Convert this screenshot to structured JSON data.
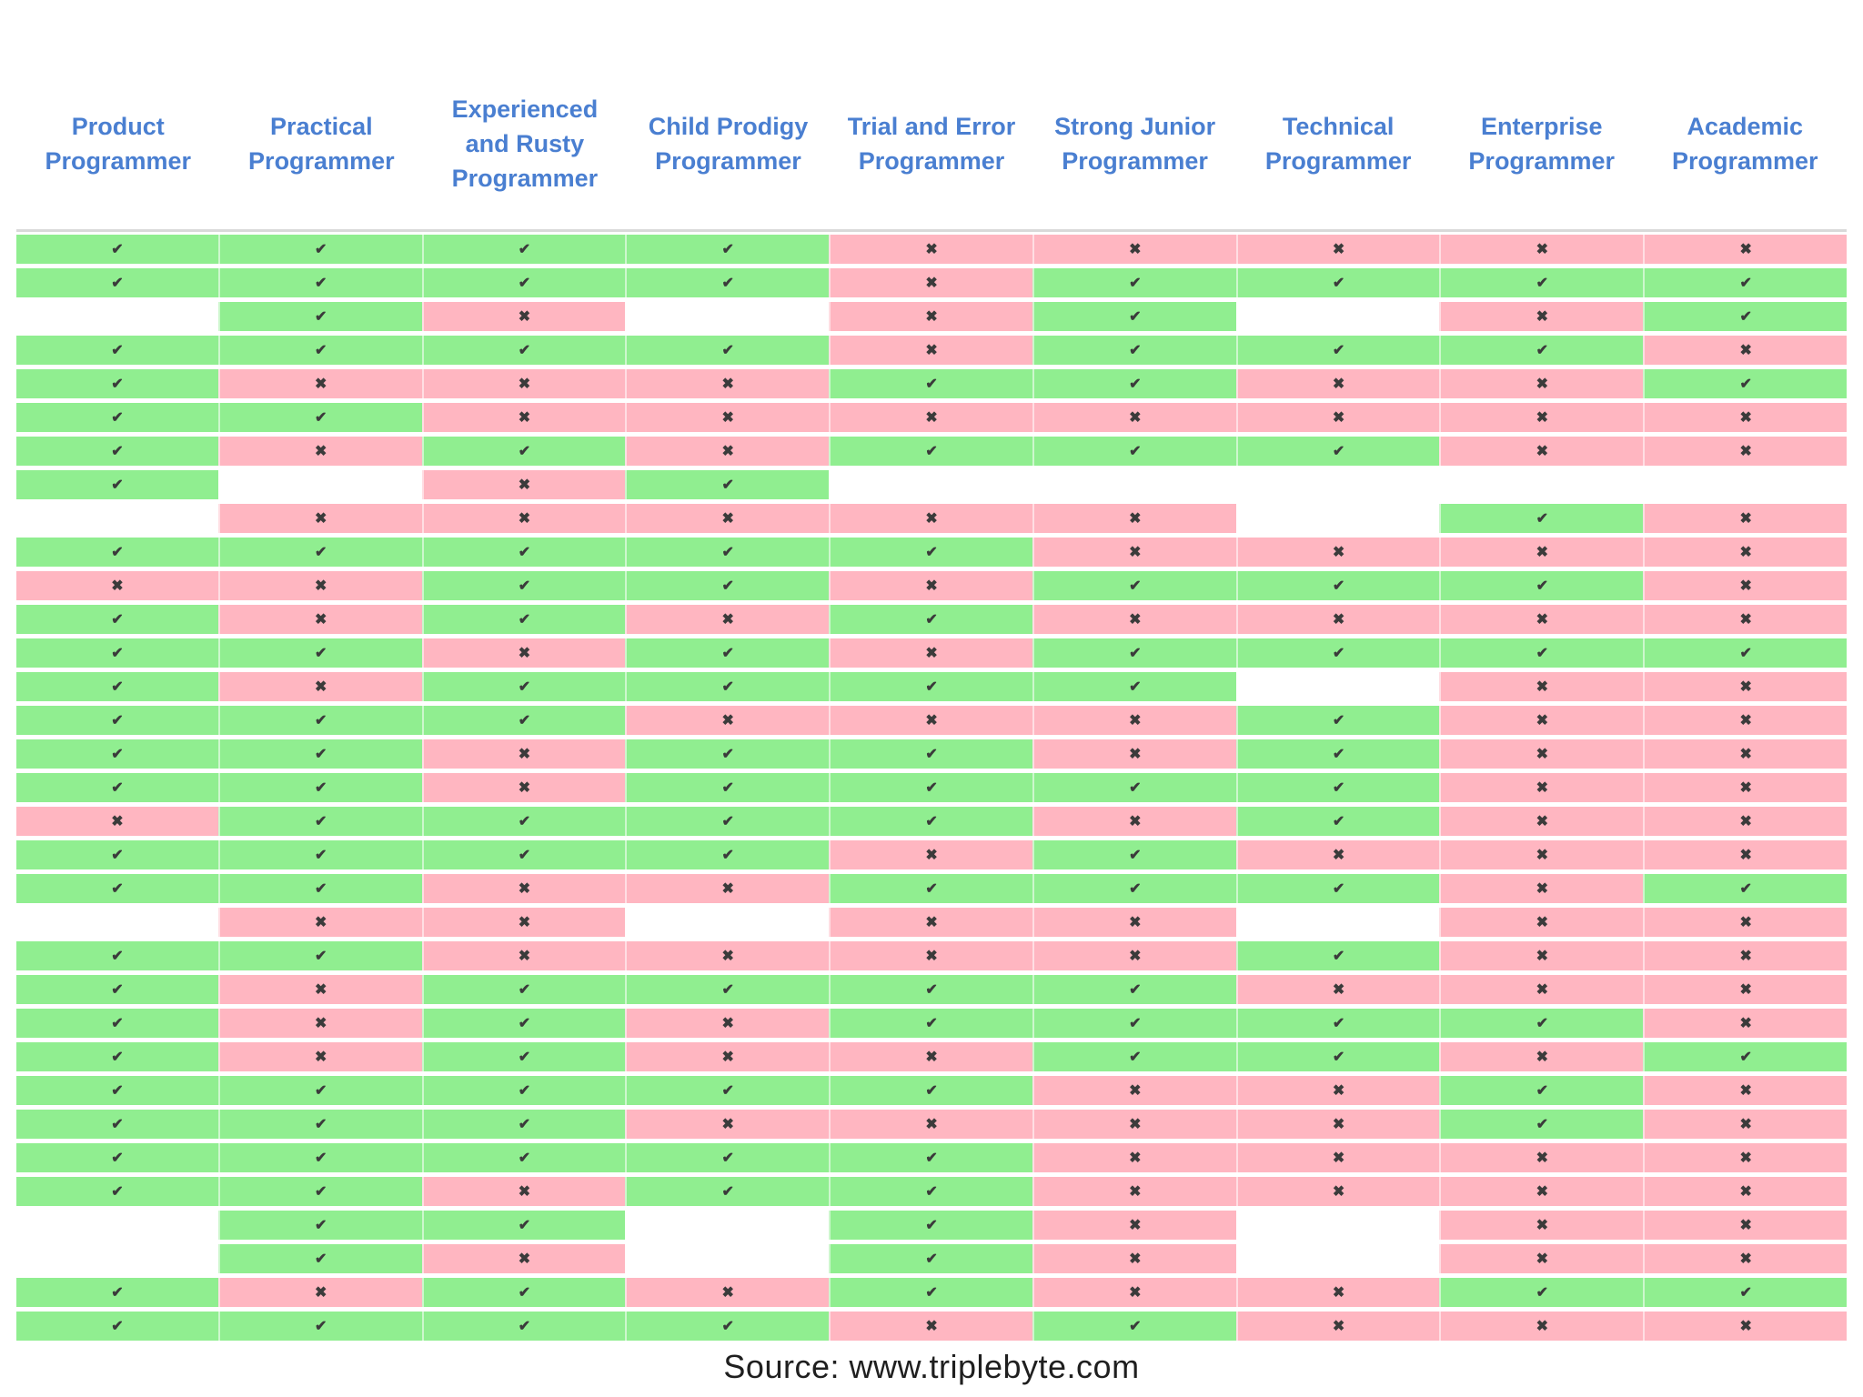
{
  "chart_data": {
    "type": "table",
    "columns": [
      "Product Programmer",
      "Practical Programmer",
      "Experienced and Rusty Programmer",
      "Child Prodigy Programmer",
      "Trial and Error Programmer",
      "Strong Junior Programmer",
      "Technical Programmer",
      "Enterprise Programmer",
      "Academic Programmer"
    ],
    "cell_encoding": {
      "c": "green check",
      "x": "pink cross",
      "b": "blank"
    },
    "rows": [
      "ccccxxxxx",
      "ccccxcccc",
      "bcxbxcbxc",
      "ccccxcccx",
      "cxxxccxxc",
      "ccxxxxxxx",
      "cxcxcccxx",
      "cbxcbbbbb",
      "bxxxxxbcx",
      "cccccxxxx",
      "xxccxcccx",
      "cxcxcxxxx",
      "ccxcxcccc",
      "cxccccbxx",
      "cccxxxcxx",
      "ccxccxcxx",
      "ccxccccxx",
      "xccccxcxx",
      "ccccxcxxx",
      "ccxxcccxc",
      "bxxbxxbxx",
      "ccxxxxcxx",
      "cxccccxxx",
      "cxcxccccx",
      "cxcxxccxc",
      "cccccxxcx",
      "cccxxxxcx",
      "cccccxxxx",
      "ccxccxxxx",
      "bccbcxbxx",
      "bcxbcxbxx",
      "cxcxcxxcc",
      "ccccxcxxx"
    ]
  },
  "symbols": {
    "check": "✔",
    "cross": "✖"
  },
  "colors": {
    "green": "#90ee90",
    "pink": "#ffb6c1",
    "header_blue": "#4a7fd1",
    "symbol": "#3b3b3b"
  },
  "footer": {
    "source": "Source: www.triplebyte.com"
  }
}
